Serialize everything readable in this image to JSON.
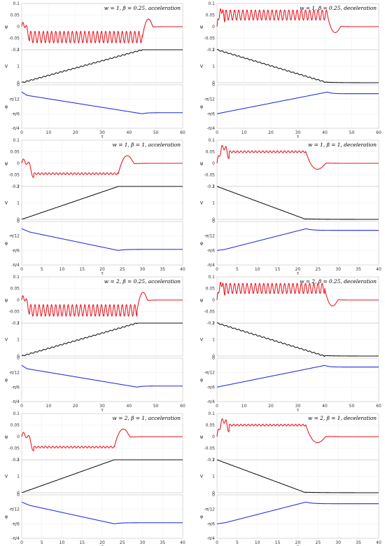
{
  "chart_data": [
    {
      "type": "line",
      "title": "w = 1, β = 0.25, acceleration",
      "duration": 60,
      "xticks": [
        0,
        10,
        20,
        30,
        40,
        50,
        60
      ],
      "xlabel": "τ",
      "ramp_end": 45,
      "mode": "acc",
      "psi_osc": 0.05,
      "psi_period": 1.55,
      "psi_final": 0,
      "v_final": 2,
      "phi_end": "-π/6",
      "phi_start": "-π/24",
      "axes": {
        "psi": {
          "label": "ψ",
          "ylim": [
            -0.1,
            0.1
          ],
          "ticks": [
            "0.1",
            "0.05",
            "0",
            "-0.05",
            "-0.1"
          ]
        },
        "v": {
          "label": "V",
          "ylim": [
            0,
            2
          ],
          "ticks": [
            "2",
            "1",
            "0"
          ]
        },
        "phi": {
          "label": "φ",
          "ylim": [
            "-π/4",
            "0"
          ],
          "ticks": [
            "0",
            "-π/12",
            "-π/6",
            "-π/4"
          ]
        }
      },
      "series": [
        {
          "color": "#e8141e"
        },
        {
          "color": "#111111"
        },
        {
          "color": "#1f2bdc"
        }
      ]
    },
    {
      "type": "line",
      "title": "w = 1, β = 0.25, deceleration",
      "duration": 60,
      "xticks": [
        0,
        10,
        20,
        30,
        40,
        50,
        60
      ],
      "xlabel": "τ",
      "ramp_end": 41,
      "mode": "dec",
      "psi_osc": 0.05,
      "psi_period": 1.55,
      "psi_final": 0,
      "v_final": 0,
      "phi_end": "-π/24",
      "phi_start": "-π/6",
      "axes": {
        "psi": {
          "label": "ψ",
          "ylim": [
            -0.1,
            0.1
          ],
          "ticks": [
            "0.1",
            "0.05",
            "0",
            "-0.05",
            "-0.1"
          ]
        },
        "v": {
          "label": "V",
          "ylim": [
            0,
            2
          ],
          "ticks": [
            "2",
            "1",
            "0"
          ]
        },
        "phi": {
          "label": "φ",
          "ylim": [
            "-π/4",
            "0"
          ],
          "ticks": [
            "0",
            "-π/12",
            "-π/6",
            "-π/4"
          ]
        }
      },
      "series": [
        {
          "color": "#e8141e"
        },
        {
          "color": "#111111"
        },
        {
          "color": "#1f2bdc"
        }
      ]
    },
    {
      "type": "line",
      "title": "w = 1, β = 1, acceleration",
      "duration": 40,
      "xticks": [
        0,
        5,
        10,
        15,
        20,
        25,
        30,
        35,
        40
      ],
      "xlabel": "τ",
      "ramp_end": 24,
      "mode": "acc",
      "psi_osc": 0.05,
      "psi_period": 0.9,
      "psi_final": 0,
      "v_final": 2,
      "phi_end": "-π/6",
      "phi_start": "-π/24",
      "axes": {
        "psi": {
          "label": "ψ",
          "ylim": [
            -0.1,
            0.1
          ],
          "ticks": [
            "0.1",
            "0.05",
            "0",
            "-0.05",
            "-0.1"
          ]
        },
        "v": {
          "label": "V",
          "ylim": [
            0,
            2
          ],
          "ticks": [
            "2",
            "1",
            "0"
          ]
        },
        "phi": {
          "label": "φ",
          "ylim": [
            "-π/4",
            "0"
          ],
          "ticks": [
            "0",
            "-π/12",
            "-π/6",
            "-π/4"
          ]
        }
      },
      "series": [
        {
          "color": "#e8141e"
        },
        {
          "color": "#111111"
        },
        {
          "color": "#1f2bdc"
        }
      ]
    },
    {
      "type": "line",
      "title": "w = 1, β = 1, deceleration",
      "duration": 40,
      "xticks": [
        0,
        5,
        10,
        15,
        20,
        25,
        30,
        35,
        40
      ],
      "xlabel": "τ",
      "ramp_end": 22,
      "mode": "dec",
      "psi_osc": 0.05,
      "psi_period": 0.9,
      "psi_final": 0,
      "v_final": 0,
      "phi_end": "-π/24",
      "phi_start": "-π/6",
      "axes": {
        "psi": {
          "label": "ψ",
          "ylim": [
            -0.1,
            0.1
          ],
          "ticks": [
            "0.1",
            "0.05",
            "0",
            "-0.05",
            "-0.1"
          ]
        },
        "v": {
          "label": "V",
          "ylim": [
            0,
            2
          ],
          "ticks": [
            "2",
            "1",
            "0"
          ]
        },
        "phi": {
          "label": "φ",
          "ylim": [
            "-π/4",
            "0"
          ],
          "ticks": [
            "0",
            "-π/12",
            "-π/6",
            "-π/4"
          ]
        }
      },
      "series": [
        {
          "color": "#e8141e"
        },
        {
          "color": "#111111"
        },
        {
          "color": "#1f2bdc"
        }
      ]
    },
    {
      "type": "line",
      "title": "w = 2, β = 0.25, acceleration",
      "duration": 60,
      "xticks": [
        0,
        10,
        20,
        30,
        40,
        50,
        60
      ],
      "xlabel": "τ",
      "ramp_end": 43,
      "mode": "acc",
      "psi_osc": 0.05,
      "psi_period": 1.55,
      "psi_final": 0,
      "v_final": 2,
      "phi_end": "-π/6",
      "phi_start": "-π/24",
      "axes": {
        "psi": {
          "label": "ψ",
          "ylim": [
            -0.1,
            0.1
          ],
          "ticks": [
            "0.1",
            "0.05",
            "0",
            "-0.05",
            "-0.1"
          ]
        },
        "v": {
          "label": "V",
          "ylim": [
            0,
            2
          ],
          "ticks": [
            "2",
            "1",
            "0"
          ]
        },
        "phi": {
          "label": "φ",
          "ylim": [
            "-π/4",
            "0"
          ],
          "ticks": [
            "0",
            "-π/12",
            "-π/6",
            "-π/4"
          ]
        }
      },
      "series": [
        {
          "color": "#e8141e"
        },
        {
          "color": "#111111"
        },
        {
          "color": "#1f2bdc"
        }
      ]
    },
    {
      "type": "line",
      "title": "w = 2, β = 0.25, deceleration",
      "duration": 60,
      "xticks": [
        0,
        10,
        20,
        30,
        40,
        50,
        60
      ],
      "xlabel": "τ",
      "ramp_end": 40,
      "mode": "dec",
      "psi_osc": 0.05,
      "psi_period": 1.55,
      "psi_final": 0,
      "v_final": 0,
      "phi_end": "-π/24",
      "phi_start": "-π/6",
      "axes": {
        "psi": {
          "label": "ψ",
          "ylim": [
            -0.1,
            0.1
          ],
          "ticks": [
            "0.1",
            "0.05",
            "0",
            "-0.05",
            "-0.1"
          ]
        },
        "v": {
          "label": "V",
          "ylim": [
            0,
            2
          ],
          "ticks": [
            "2",
            "1",
            "0"
          ]
        },
        "phi": {
          "label": "φ",
          "ylim": [
            "-π/4",
            "0"
          ],
          "ticks": [
            "0",
            "-π/12",
            "-π/6",
            "-π/4"
          ]
        }
      },
      "series": [
        {
          "color": "#e8141e"
        },
        {
          "color": "#111111"
        },
        {
          "color": "#1f2bdc"
        }
      ]
    },
    {
      "type": "line",
      "title": "w = 2, β = 1, acceleration",
      "duration": 40,
      "xticks": [
        0,
        5,
        10,
        15,
        20,
        25,
        30,
        35,
        40
      ],
      "xlabel": "τ",
      "ramp_end": 23,
      "mode": "acc",
      "psi_osc": 0.05,
      "psi_period": 0.9,
      "psi_final": 0,
      "v_final": 2,
      "phi_end": "-π/6",
      "phi_start": "-π/24",
      "axes": {
        "psi": {
          "label": "ψ",
          "ylim": [
            -0.1,
            0.1
          ],
          "ticks": [
            "0.1",
            "0.05",
            "0",
            "-0.05",
            "-0.1"
          ]
        },
        "v": {
          "label": "V",
          "ylim": [
            0,
            2
          ],
          "ticks": [
            "2",
            "1",
            "0"
          ]
        },
        "phi": {
          "label": "φ",
          "ylim": [
            "-π/4",
            "0"
          ],
          "ticks": [
            "0",
            "-π/12",
            "-π/6",
            "-π/4"
          ]
        }
      },
      "series": [
        {
          "color": "#e8141e"
        },
        {
          "color": "#111111"
        },
        {
          "color": "#1f2bdc"
        }
      ]
    },
    {
      "type": "line",
      "title": "w = 2, β = 1, deceleration",
      "duration": 40,
      "xticks": [
        0,
        5,
        10,
        15,
        20,
        25,
        30,
        35,
        40
      ],
      "xlabel": "τ",
      "ramp_end": 22,
      "mode": "dec",
      "psi_osc": 0.05,
      "psi_period": 0.9,
      "psi_final": 0,
      "v_final": 0,
      "phi_end": "-π/24",
      "phi_start": "-π/6",
      "axes": {
        "psi": {
          "label": "ψ",
          "ylim": [
            -0.1,
            0.1
          ],
          "ticks": [
            "0.1",
            "0.05",
            "0",
            "-0.05",
            "-0.1"
          ]
        },
        "v": {
          "label": "V",
          "ylim": [
            0,
            2
          ],
          "ticks": [
            "2",
            "1",
            "0"
          ]
        },
        "phi": {
          "label": "φ",
          "ylim": [
            "-π/4",
            "0"
          ],
          "ticks": [
            "0",
            "-π/12",
            "-π/6",
            "-π/4"
          ]
        }
      },
      "series": [
        {
          "color": "#e8141e"
        },
        {
          "color": "#111111"
        },
        {
          "color": "#1f2bdc"
        }
      ]
    }
  ]
}
